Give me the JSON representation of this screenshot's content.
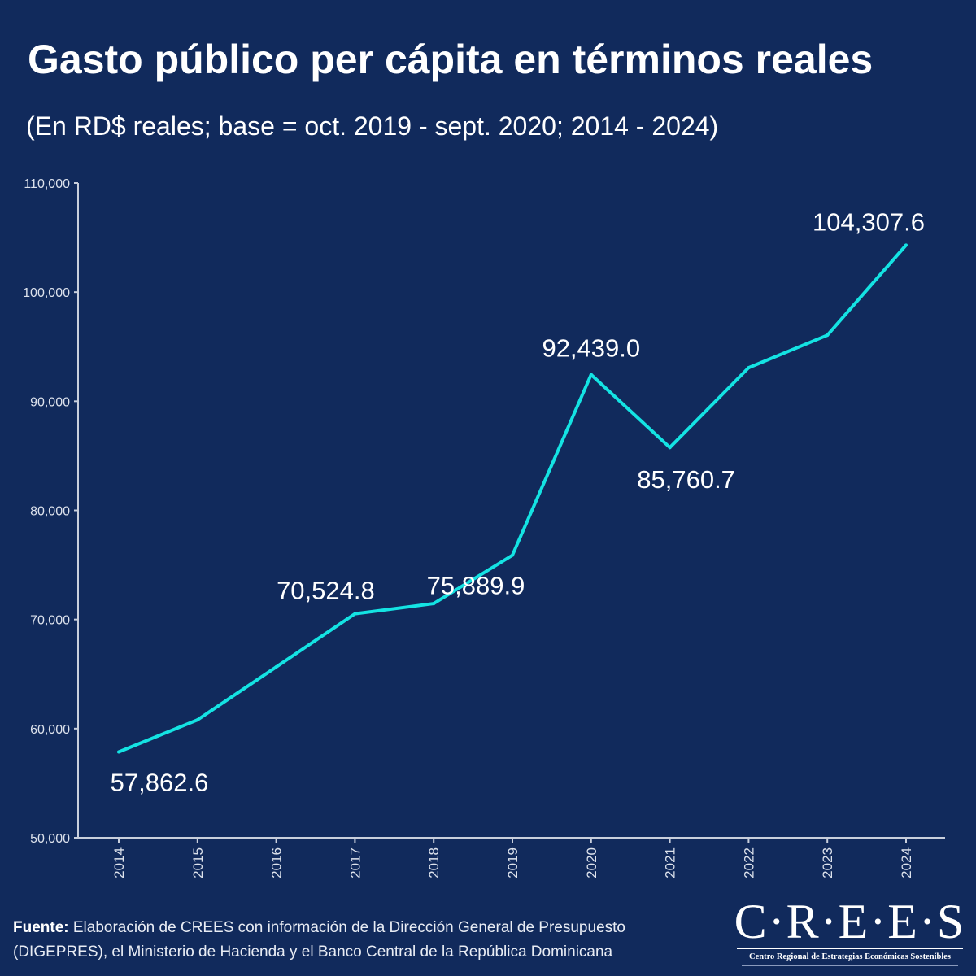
{
  "header": {
    "title": "Gasto público per cápita en términos reales",
    "subtitle": "(En RD$ reales; base = oct. 2019 - sept. 2020;  2014 - 2024)"
  },
  "chart_data": {
    "type": "line",
    "title": "Gasto público per cápita en términos reales",
    "xlabel": "",
    "ylabel": "",
    "ylim": [
      50000,
      110000
    ],
    "yticks": [
      50000,
      60000,
      70000,
      80000,
      90000,
      100000,
      110000
    ],
    "ytick_labels": [
      "50,000",
      "60,000",
      "70,000",
      "80,000",
      "90,000",
      "100,000",
      "110,000"
    ],
    "categories": [
      "2014",
      "2015",
      "2016",
      "2017",
      "2018",
      "2019",
      "2020",
      "2021",
      "2022",
      "2023",
      "2024"
    ],
    "series": [
      {
        "name": "Gasto público per cápita",
        "color": "#14e3e3",
        "values": [
          57862.6,
          60800,
          65650,
          70524.8,
          71460,
          75889.9,
          92439.0,
          85760.7,
          93070,
          96050,
          104307.6
        ]
      }
    ],
    "data_labels": [
      {
        "index": 0,
        "text": "57,862.6",
        "placement": "below-right"
      },
      {
        "index": 3,
        "text": "70,524.8",
        "placement": "above-left"
      },
      {
        "index": 5,
        "text": "75,889.9",
        "placement": "below"
      },
      {
        "index": 6,
        "text": "92,439.0",
        "placement": "above"
      },
      {
        "index": 7,
        "text": "85,760.7",
        "placement": "below"
      },
      {
        "index": 10,
        "text": "104,307.6",
        "placement": "above-left"
      }
    ],
    "grid": false
  },
  "footer": {
    "source_label": "Fuente:",
    "source_text": " Elaboración de CREES con información de la Dirección General de Presupuesto",
    "source_text2": "(DIGEPRES), el Ministerio de Hacienda y el Banco Central de la República Dominicana",
    "logo_main": "C·R·E·E·S",
    "logo_sub": "Centro Regional de Estrategias Económicas Sostenibles"
  }
}
